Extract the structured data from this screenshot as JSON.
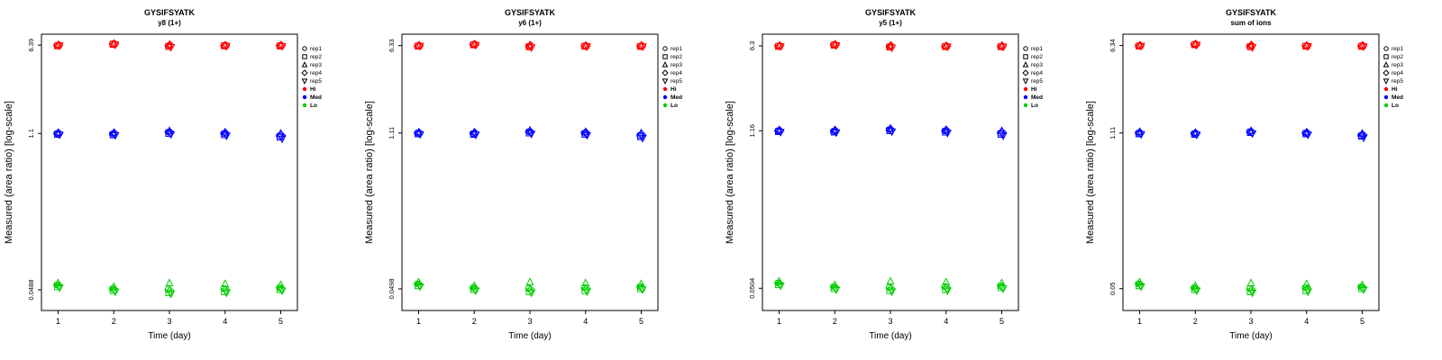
{
  "figure": {
    "background": "#FFFFFF",
    "frame_color": "#000000"
  },
  "chart_data": {
    "type": "scatter",
    "title": "GYSIFSYATK",
    "xlabel": "Time (day)",
    "ylabel": "Measured (area ratio) [log-scale]",
    "x_ticks": [
      1,
      2,
      3,
      4,
      5
    ],
    "y_scale": "log",
    "legend_position": "right",
    "reps": [
      {
        "name": "rep1",
        "marker": "circle"
      },
      {
        "name": "rep2",
        "marker": "square"
      },
      {
        "name": "rep3",
        "marker": "triangle-up"
      },
      {
        "name": "rep4",
        "marker": "diamond"
      },
      {
        "name": "rep5",
        "marker": "triangle-down"
      }
    ],
    "levels": [
      {
        "name": "Hi",
        "color": "#FF0000"
      },
      {
        "name": "Med",
        "color": "#0000FF"
      },
      {
        "name": "Lo",
        "color": "#00CD00"
      }
    ],
    "panels": [
      {
        "subtitle": "y8 (1+)",
        "y_tick_labels": [
          "6.39",
          "1.1",
          "0.0488"
        ],
        "series": {
          "Hi": [
            [
              6.35,
              6.3,
              6.42,
              6.38,
              6.33
            ],
            [
              6.55,
              6.48,
              6.6,
              6.52,
              6.45
            ],
            [
              6.3,
              6.22,
              6.45,
              6.38,
              6.12
            ],
            [
              6.35,
              6.3,
              6.38,
              6.33,
              6.28
            ],
            [
              6.32,
              6.28,
              6.4,
              6.35,
              6.25
            ]
          ],
          "Med": [
            [
              1.1,
              1.08,
              1.12,
              1.1,
              1.07
            ],
            [
              1.09,
              1.07,
              1.12,
              1.1,
              1.06
            ],
            [
              1.13,
              1.1,
              1.16,
              1.12,
              1.08
            ],
            [
              1.1,
              1.07,
              1.13,
              1.1,
              1.05
            ],
            [
              1.05,
              1.02,
              1.1,
              1.06,
              0.99
            ]
          ],
          "Lo": [
            [
              0.054,
              0.052,
              0.056,
              0.053,
              0.051
            ],
            [
              0.05,
              0.048,
              0.052,
              0.049,
              0.047
            ],
            [
              0.049,
              0.046,
              0.056,
              0.048,
              0.045
            ],
            [
              0.05,
              0.047,
              0.055,
              0.049,
              0.046
            ],
            [
              0.051,
              0.049,
              0.054,
              0.05,
              0.048
            ]
          ]
        }
      },
      {
        "subtitle": "y6 (1+)",
        "y_tick_labels": [
          "6.33",
          "1.11",
          "0.0498"
        ],
        "series": {
          "Hi": [
            [
              6.3,
              6.25,
              6.36,
              6.32,
              6.27
            ],
            [
              6.48,
              6.42,
              6.54,
              6.46,
              6.4
            ],
            [
              6.25,
              6.18,
              6.4,
              6.33,
              6.08
            ],
            [
              6.28,
              6.24,
              6.33,
              6.28,
              6.22
            ],
            [
              6.27,
              6.22,
              6.35,
              6.3,
              6.2
            ]
          ],
          "Med": [
            [
              1.11,
              1.09,
              1.13,
              1.11,
              1.08
            ],
            [
              1.1,
              1.08,
              1.13,
              1.11,
              1.07
            ],
            [
              1.14,
              1.11,
              1.17,
              1.13,
              1.09
            ],
            [
              1.11,
              1.08,
              1.14,
              1.11,
              1.06
            ],
            [
              1.06,
              1.03,
              1.11,
              1.07,
              1.0
            ]
          ],
          "Lo": [
            [
              0.055,
              0.053,
              0.057,
              0.054,
              0.052
            ],
            [
              0.051,
              0.049,
              0.053,
              0.05,
              0.048
            ],
            [
              0.05,
              0.047,
              0.057,
              0.049,
              0.046
            ],
            [
              0.051,
              0.048,
              0.056,
              0.05,
              0.047
            ],
            [
              0.052,
              0.05,
              0.055,
              0.051,
              0.049
            ]
          ]
        }
      },
      {
        "subtitle": "y5 (1+)",
        "y_tick_labels": [
          "6.3",
          "1.16",
          "0.0504"
        ],
        "series": {
          "Hi": [
            [
              6.27,
              6.22,
              6.33,
              6.29,
              6.24
            ],
            [
              6.45,
              6.38,
              6.5,
              6.43,
              6.36
            ],
            [
              6.22,
              6.15,
              6.36,
              6.3,
              6.05
            ],
            [
              6.25,
              6.21,
              6.3,
              6.25,
              6.19
            ],
            [
              6.24,
              6.19,
              6.32,
              6.27,
              6.17
            ]
          ],
          "Med": [
            [
              1.16,
              1.14,
              1.18,
              1.16,
              1.13
            ],
            [
              1.15,
              1.13,
              1.18,
              1.16,
              1.12
            ],
            [
              1.19,
              1.16,
              1.22,
              1.18,
              1.14
            ],
            [
              1.16,
              1.13,
              1.19,
              1.16,
              1.11
            ],
            [
              1.11,
              1.08,
              1.16,
              1.12,
              1.05
            ]
          ],
          "Lo": [
            [
              0.056,
              0.054,
              0.058,
              0.055,
              0.053
            ],
            [
              0.052,
              0.05,
              0.054,
              0.051,
              0.049
            ],
            [
              0.051,
              0.048,
              0.058,
              0.05,
              0.047
            ],
            [
              0.052,
              0.049,
              0.057,
              0.051,
              0.048
            ],
            [
              0.053,
              0.051,
              0.056,
              0.052,
              0.05
            ]
          ]
        }
      },
      {
        "subtitle": "sum of ions",
        "y_tick_labels": [
          "6.34",
          "1.11",
          "0.05"
        ],
        "series": {
          "Hi": [
            [
              6.31,
              6.26,
              6.37,
              6.33,
              6.28
            ],
            [
              6.49,
              6.43,
              6.55,
              6.47,
              6.41
            ],
            [
              6.26,
              6.19,
              6.41,
              6.34,
              6.09
            ],
            [
              6.29,
              6.25,
              6.34,
              6.29,
              6.23
            ],
            [
              6.28,
              6.23,
              6.36,
              6.31,
              6.21
            ]
          ],
          "Med": [
            [
              1.11,
              1.09,
              1.14,
              1.11,
              1.08
            ],
            [
              1.1,
              1.08,
              1.12,
              1.1,
              1.07
            ],
            [
              1.14,
              1.12,
              1.16,
              1.13,
              1.1
            ],
            [
              1.11,
              1.09,
              1.13,
              1.11,
              1.07
            ],
            [
              1.06,
              1.04,
              1.1,
              1.07,
              1.01
            ]
          ],
          "Lo": [
            [
              0.055,
              0.053,
              0.057,
              0.054,
              0.052
            ],
            [
              0.051,
              0.049,
              0.053,
              0.05,
              0.048
            ],
            [
              0.05,
              0.047,
              0.056,
              0.049,
              0.046
            ],
            [
              0.051,
              0.048,
              0.055,
              0.05,
              0.047
            ],
            [
              0.052,
              0.05,
              0.054,
              0.051,
              0.049
            ]
          ]
        }
      }
    ]
  }
}
